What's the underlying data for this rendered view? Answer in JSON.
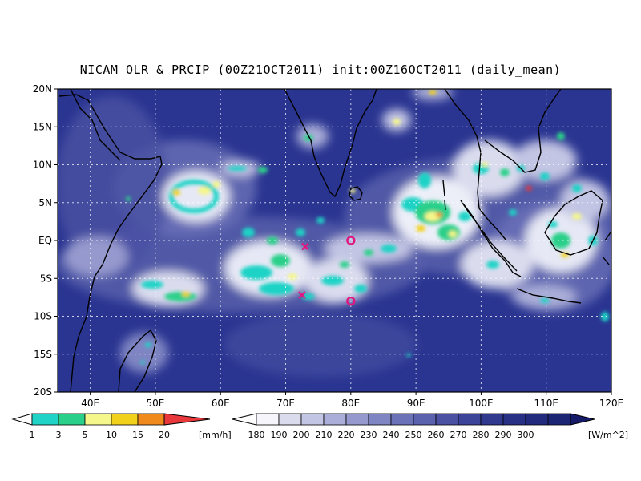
{
  "title": "NICAM OLR & PRCIP (00Z21OCT2011) init:00Z16OCT2011 (daily_mean)",
  "map": {
    "lon_range": [
      35,
      120
    ],
    "lat_range": [
      -20,
      20
    ],
    "background_color": "#2a3591",
    "lat_ticks": [
      {
        "value": 20,
        "label": "20N"
      },
      {
        "value": 15,
        "label": "15N"
      },
      {
        "value": 10,
        "label": "10N"
      },
      {
        "value": 5,
        "label": "5N"
      },
      {
        "value": 0,
        "label": "EQ"
      },
      {
        "value": -5,
        "label": "5S"
      },
      {
        "value": -10,
        "label": "10S"
      },
      {
        "value": -15,
        "label": "15S"
      },
      {
        "value": -20,
        "label": "20S"
      }
    ],
    "lon_ticks": [
      {
        "value": 40,
        "label": "40E"
      },
      {
        "value": 50,
        "label": "50E"
      },
      {
        "value": 60,
        "label": "60E"
      },
      {
        "value": 70,
        "label": "70E"
      },
      {
        "value": 80,
        "label": "80E"
      },
      {
        "value": 90,
        "label": "90E"
      },
      {
        "value": 100,
        "label": "100E"
      },
      {
        "value": 110,
        "label": "110E"
      },
      {
        "value": 120,
        "label": "120E"
      }
    ],
    "grid": true,
    "markers": [
      {
        "type": "cross",
        "lon": 73,
        "lat": -0.8,
        "color": "#e0177e"
      },
      {
        "type": "cross",
        "lon": 72.5,
        "lat": -7.2,
        "color": "#e0177e"
      },
      {
        "type": "circle",
        "lon": 80,
        "lat": 0,
        "color": "#e0177e"
      },
      {
        "type": "circle",
        "lon": 80,
        "lat": -8,
        "color": "#e0177e"
      }
    ]
  },
  "precip_colorbar": {
    "unit": "[mm/h]",
    "labels": [
      "1",
      "3",
      "5",
      "10",
      "15",
      "20"
    ],
    "colors": [
      "#1fd3c6",
      "#2ad08a",
      "#f6f78a",
      "#f2d11a",
      "#f18a1c",
      "#e8383b"
    ]
  },
  "olr_colorbar": {
    "unit": "[W/m^2]",
    "labels": [
      "180",
      "190",
      "200",
      "210",
      "220",
      "230",
      "240",
      "250",
      "260",
      "270",
      "280",
      "290",
      "300"
    ],
    "colors": [
      "#f5f5fb",
      "#dadcee",
      "#c2c5e3",
      "#aaaed8",
      "#9599cd",
      "#7f85c2",
      "#6c72b8",
      "#5a61ad",
      "#4a51a3",
      "#3c4499",
      "#31398f",
      "#283086",
      "#222a7d",
      "#1c2474"
    ]
  }
}
